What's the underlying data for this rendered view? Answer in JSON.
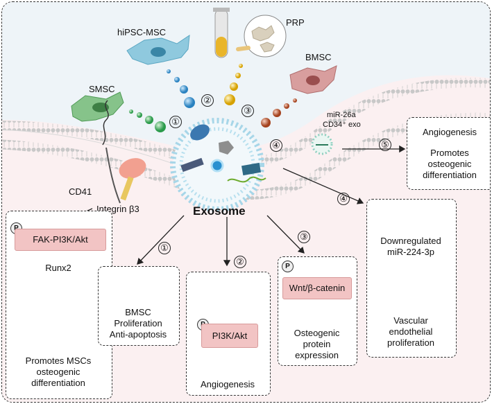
{
  "sources": {
    "hipsc": "hiPSC-MSC",
    "prp": "PRP",
    "smsc": "SMSC",
    "bmsc": "BMSC"
  },
  "center": {
    "exosome": "Exosome",
    "cd41": "CD41",
    "integrin": "Integrin β3",
    "mir26a": "miR-26a",
    "cd34": "CD34⁺ exo"
  },
  "markers": [
    "①",
    "②",
    "③",
    "④",
    "⑤"
  ],
  "top_right_box": {
    "line1": "Angiogenesis",
    "line2": "Promotes",
    "line3": "osteogenic",
    "line4": "differentiation"
  },
  "left_box": {
    "badge": "P",
    "pathway": "FAK-PI3K/Akt",
    "gene": "Runx2",
    "line1": "Promotes MSCs",
    "line2": "osteogenic",
    "line3": "differentiation"
  },
  "box1": {
    "line1": "BMSC",
    "line2": "Proliferation",
    "line3": "Anti-apoptosis"
  },
  "box2": {
    "badge": "P",
    "pathway": "PI3K/Akt",
    "outcome": "Angiogenesis"
  },
  "box3": {
    "badge": "P",
    "pathway": "Wnt/β-catenin",
    "line1": "Osteogenic",
    "line2": "protein",
    "line3": "expression"
  },
  "box4": {
    "line1": "Downregulated",
    "line2": "miR-224-3p",
    "line3": "Vascular",
    "line4": "endothelial",
    "line5": "proliferation"
  },
  "colors": {
    "top_bg": "#eef4f8",
    "bottom_bg": "#fbf0f1",
    "pink_box": "#f2c4c4",
    "membrane": "#bfbfbf",
    "arrow_red": "#e2231a"
  }
}
